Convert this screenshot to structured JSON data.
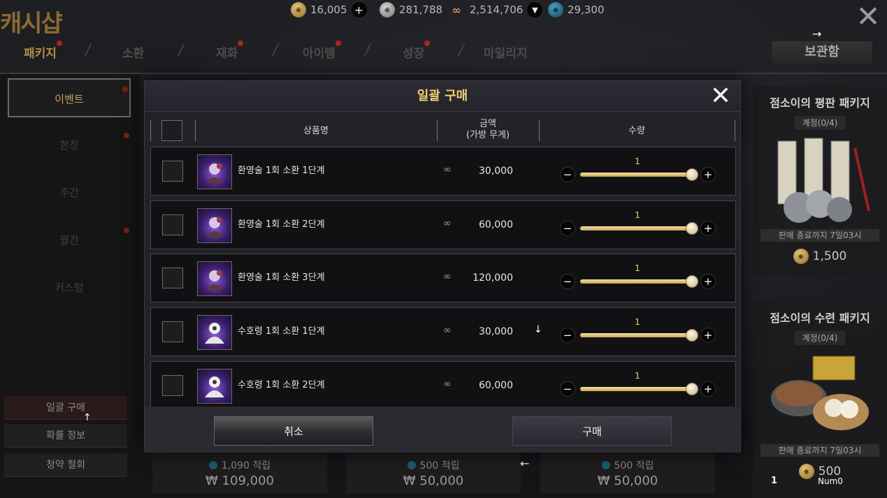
{
  "shop": {
    "title": "캐시샵",
    "close_icon": "close-icon"
  },
  "currencies": [
    {
      "icon": "gold-coin-icon",
      "value": "16,005",
      "has_add": true
    },
    {
      "icon": "silver-coin-icon",
      "value": "281,788"
    },
    {
      "icon": "copper-coin-icon",
      "value": "2,514,706",
      "has_dropdown": true
    },
    {
      "icon": "jade-coin-icon",
      "value": "29,300"
    }
  ],
  "tabs": [
    {
      "label": "패키지",
      "active": true,
      "dot": true
    },
    {
      "label": "소환",
      "dot": false
    },
    {
      "label": "재화",
      "dot": true
    },
    {
      "label": "아이템",
      "dot": true
    },
    {
      "label": "성장",
      "dot": true
    },
    {
      "label": "마일리지",
      "dot": false
    }
  ],
  "tab_separator": "/",
  "storage_label": "보관함",
  "overlay_arrows": {
    "right": "→",
    "up": "↑",
    "down": "↓",
    "left": "←"
  },
  "sidebar": {
    "items": [
      {
        "label": "이벤트",
        "active": true,
        "dot": true
      },
      {
        "label": "한정",
        "dot": true
      },
      {
        "label": "주간"
      },
      {
        "label": "월간",
        "dot": true
      },
      {
        "label": "커스텀"
      }
    ],
    "buttons": [
      "일괄 구매",
      "확률 정보",
      "청약 철회"
    ]
  },
  "packages": [
    {
      "title": "점소이의 평판 패키지",
      "limit": "계정(0/4)",
      "sale_text": "판매 종료까지 7일03시",
      "price": "1,500"
    },
    {
      "title": "점소이의 수련 패키지",
      "limit": "계정(0/4)",
      "sale_text": "판매 종료까지 7일03시",
      "price": "500"
    }
  ],
  "bottom_cards": [
    {
      "reward": "1,090 적립",
      "price": "₩ 109,000"
    },
    {
      "reward": "500 적립",
      "price": "₩ 50,000"
    },
    {
      "reward": "500 적립",
      "price": "₩ 50,000"
    }
  ],
  "overlay_labels": {
    "num_one": "1",
    "num_zero": "Num0"
  },
  "modal": {
    "title": "일괄 구매",
    "columns": {
      "name": "상품명",
      "price_line1": "금액",
      "price_line2": "(가방 무게)",
      "qty": "수량"
    },
    "rows": [
      {
        "name": "환영술 1회 소환 1단계",
        "price": "30,000",
        "qty": "1",
        "icon": "illusion-summon-icon"
      },
      {
        "name": "환영술 1회 소환 2단계",
        "price": "60,000",
        "qty": "1",
        "icon": "illusion-summon-icon"
      },
      {
        "name": "환영술 1회 소환 3단계",
        "price": "120,000",
        "qty": "1",
        "icon": "illusion-summon-icon"
      },
      {
        "name": "수호령 1회 소환 1단계",
        "price": "30,000",
        "qty": "1",
        "icon": "guardian-summon-icon"
      },
      {
        "name": "수호령 1회 소환 2단계",
        "price": "60,000",
        "qty": "1",
        "icon": "guardian-summon-icon"
      }
    ],
    "cancel_label": "취소",
    "buy_label": "구매"
  },
  "colors": {
    "accent_gold": "#f0d070",
    "shop_title": "#8a6b33",
    "notification_dot": "#a52a1a"
  }
}
